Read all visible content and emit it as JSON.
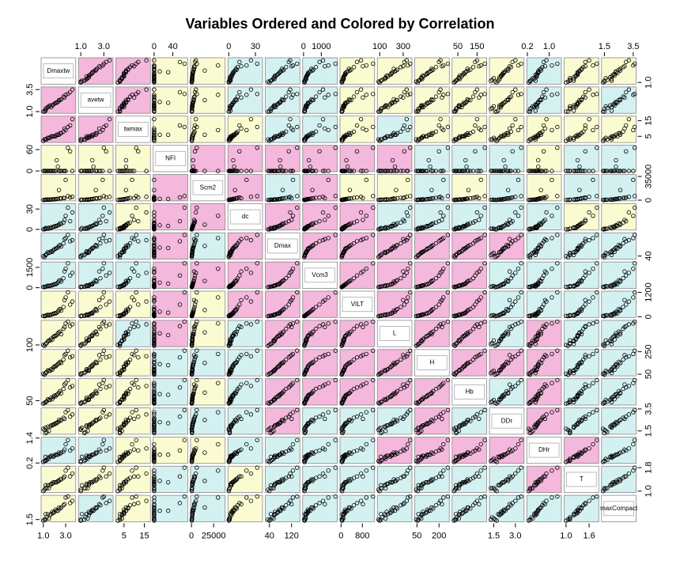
{
  "chart_data": {
    "type": "scatter-matrix",
    "title": "Variables Ordered and Colored by Correlation",
    "point_color": "#000000",
    "variables": [
      {
        "name": "Dmaxtw",
        "lim": [
          0.8,
          3.9
        ],
        "xticks": [
          {
            "value": 1,
            "label": "1.0"
          },
          {
            "value": 3,
            "label": "3.0"
          }
        ],
        "yticks": [
          {
            "value": 1,
            "label": "1.0"
          }
        ],
        "values": [
          1.2,
          2.1,
          1.5,
          3.4,
          1.8,
          2.6,
          1.1,
          3.0,
          1.4,
          2.3,
          2.8,
          1.3,
          1.9,
          2.5,
          1.0,
          3.6,
          2.2,
          1.6,
          2.9,
          1.7,
          2.4,
          1.2,
          3.2,
          2.0
        ]
      },
      {
        "name": "avetw",
        "lim": [
          0.8,
          3.8
        ],
        "xticks": [
          {
            "value": 1,
            "label": "1.0"
          },
          {
            "value": 3,
            "label": "3.0"
          }
        ],
        "yticks": [
          {
            "value": 1,
            "label": "1.0"
          },
          3.5
        ],
        "values": [
          1.1,
          2.0,
          1.6,
          3.2,
          1.7,
          2.4,
          1.0,
          2.9,
          1.5,
          2.1,
          2.7,
          1.4,
          1.8,
          2.3,
          1.0,
          3.5,
          2.0,
          1.7,
          2.6,
          1.5,
          2.3,
          1.3,
          3.0,
          1.9
        ]
      },
      {
        "name": "twmax",
        "lim": [
          1,
          18
        ],
        "xticks": [
          5,
          15
        ],
        "yticks": [
          5,
          15
        ],
        "values": [
          3,
          5,
          4,
          12,
          5,
          7,
          3,
          9,
          4,
          6,
          8,
          3,
          5,
          7,
          2,
          16,
          6,
          4,
          10,
          5,
          6,
          3,
          11,
          5
        ]
      },
      {
        "name": "NFI",
        "lim": [
          -2,
          72
        ],
        "xticks": [
          0,
          40
        ],
        "yticks": [
          0,
          60
        ],
        "values": [
          0,
          0,
          0,
          55,
          0,
          0,
          0,
          0,
          0,
          12,
          0,
          0,
          0,
          0,
          0,
          0,
          30,
          0,
          0,
          0,
          0,
          0,
          65,
          0
        ]
      },
      {
        "name": "Scm2",
        "lim": [
          -1000,
          38000
        ],
        "xticks": [
          0,
          25000
        ],
        "yticks": [
          0,
          35000
        ],
        "values": [
          800,
          1500,
          600,
          4000,
          1200,
          2500,
          400,
          30000,
          900,
          2000,
          3500,
          700,
          1100,
          2800,
          300,
          5000,
          1800,
          1000,
          3000,
          900,
          15000,
          500,
          6000,
          1400
        ]
      },
      {
        "name": "dc",
        "lim": [
          -1,
          38
        ],
        "xticks": [
          0,
          30
        ],
        "yticks": [
          0,
          30
        ],
        "values": [
          2,
          5,
          1,
          12,
          3,
          8,
          0,
          20,
          2,
          6,
          10,
          1,
          4,
          9,
          0,
          25,
          5,
          3,
          14,
          2,
          7,
          1,
          32,
          4
        ]
      },
      {
        "name": "Dmax",
        "lim": [
          25,
          150
        ],
        "xticks": [
          40,
          120
        ],
        "yticks": [
          40
        ],
        "values": [
          45,
          75,
          55,
          110,
          60,
          85,
          35,
          125,
          58,
          80,
          100,
          50,
          68,
          92,
          40,
          115,
          78,
          57,
          120,
          62,
          88,
          44,
          140,
          72
        ]
      },
      {
        "name": "Vcm3",
        "lim": [
          -50,
          1900
        ],
        "xticks": [
          0,
          1000
        ],
        "yticks": [
          0,
          1500
        ],
        "values": [
          80,
          250,
          120,
          900,
          180,
          450,
          40,
          1400,
          150,
          380,
          700,
          100,
          230,
          550,
          60,
          1100,
          300,
          140,
          1200,
          170,
          500,
          70,
          1800,
          260
        ]
      },
      {
        "name": "VILT",
        "lim": [
          -40,
          1260
        ],
        "xticks": [
          0,
          800
        ],
        "yticks": [
          0,
          1200
        ],
        "values": [
          50,
          160,
          80,
          600,
          120,
          300,
          25,
          950,
          100,
          250,
          480,
          70,
          150,
          380,
          40,
          750,
          200,
          90,
          820,
          110,
          330,
          45,
          1200,
          170
        ]
      },
      {
        "name": "L",
        "lim": [
          80,
          375
        ],
        "xticks": [
          100,
          300
        ],
        "yticks": [
          100
        ],
        "values": [
          110,
          200,
          150,
          310,
          160,
          220,
          90,
          340,
          140,
          230,
          280,
          120,
          190,
          250,
          100,
          330,
          210,
          150,
          300,
          170,
          240,
          110,
          360,
          200
        ]
      },
      {
        "name": "H",
        "lim": [
          35,
          270
        ],
        "xticks": [
          50,
          200
        ],
        "yticks": [
          50,
          250
        ],
        "values": [
          60,
          120,
          80,
          200,
          90,
          150,
          45,
          230,
          85,
          140,
          180,
          70,
          110,
          160,
          55,
          210,
          130,
          80,
          220,
          95,
          150,
          60,
          260,
          120
        ]
      },
      {
        "name": "Hb",
        "lim": [
          20,
          200
        ],
        "xticks": [
          50,
          150
        ],
        "yticks": [
          50
        ],
        "values": [
          40,
          80,
          55,
          140,
          60,
          100,
          35,
          170,
          60,
          95,
          130,
          45,
          75,
          115,
          30,
          150,
          90,
          55,
          160,
          70,
          105,
          40,
          190,
          85
        ]
      },
      {
        "name": "DDr",
        "lim": [
          1.2,
          3.6
        ],
        "xticks": [
          1.5,
          {
            "value": 3,
            "label": "3.0"
          }
        ],
        "yticks": [
          1.5,
          3.5
        ],
        "values": [
          1.8,
          2.2,
          1.5,
          2.8,
          2.0,
          2.5,
          1.6,
          3.2,
          1.9,
          2.3,
          2.7,
          1.4,
          2.1,
          2.4,
          1.7,
          3.0,
          2.2,
          1.9,
          2.6,
          2.0,
          2.5,
          1.3,
          3.4,
          2.1
        ]
      },
      {
        "name": "DHr",
        "lim": [
          0.18,
          1.45
        ],
        "xticks": [
          0.2,
          {
            "value": 1,
            "label": "1.0"
          }
        ],
        "yticks": [
          0.2,
          1.4
        ],
        "values": [
          0.5,
          0.6,
          0.4,
          0.8,
          0.55,
          0.7,
          0.3,
          1.1,
          0.45,
          0.6,
          0.75,
          0.35,
          0.5,
          0.65,
          0.25,
          0.9,
          0.6,
          0.5,
          0.85,
          0.55,
          0.7,
          0.3,
          1.3,
          0.55
        ]
      },
      {
        "name": "T",
        "lim": [
          0.95,
          1.85
        ],
        "xticks": [
          {
            "value": 1,
            "label": "1.0"
          },
          1.6
        ],
        "yticks": [
          {
            "value": 1,
            "label": "1.0"
          },
          1.8
        ],
        "values": [
          1.2,
          1.3,
          1.1,
          1.5,
          1.25,
          1.4,
          1.05,
          1.7,
          1.2,
          1.35,
          1.45,
          1.1,
          1.3,
          1.4,
          1.0,
          1.6,
          1.3,
          1.2,
          1.5,
          1.25,
          1.35,
          1.1,
          1.8,
          1.3
        ]
      },
      {
        "name": "maxCompact",
        "lim": [
          1.3,
          3.7
        ],
        "xticks": [
          1.5,
          3.5
        ],
        "yticks": [
          1.5
        ],
        "values": [
          2.0,
          2.4,
          1.6,
          3.0,
          2.2,
          2.6,
          1.5,
          3.5,
          2.0,
          2.3,
          2.8,
          1.7,
          2.1,
          2.5,
          1.4,
          3.2,
          2.3,
          1.9,
          2.9,
          2.0,
          2.6,
          1.5,
          3.6,
          2.2
        ]
      }
    ],
    "panel_colors": [
      [
        null,
        "#f3b8dc",
        "#f3b8dc",
        "#fbfbd2",
        "#fbfbd2",
        "#d4f1f1",
        "#d4f1f1",
        "#d4f1f1",
        "#fbfbd2",
        "#fbfbd2",
        "#fbfbd2",
        "#fbfbd2",
        "#fbfbd2",
        "#d4f1f1",
        "#fbfbd2",
        "#fbfbd2"
      ],
      [
        "#f3b8dc",
        null,
        "#f3b8dc",
        "#fbfbd2",
        "#fbfbd2",
        "#d4f1f1",
        "#d4f1f1",
        "#d4f1f1",
        "#fbfbd2",
        "#fbfbd2",
        "#fbfbd2",
        "#fbfbd2",
        "#fbfbd2",
        "#d4f1f1",
        "#fbfbd2",
        "#d4f1f1"
      ],
      [
        "#f3b8dc",
        "#f3b8dc",
        null,
        "#fbfbd2",
        "#fbfbd2",
        "#fbfbd2",
        "#d4f1f1",
        "#d4f1f1",
        "#fbfbd2",
        "#d4f1f1",
        "#fbfbd2",
        "#fbfbd2",
        "#fbfbd2",
        "#fbfbd2",
        "#fbfbd2",
        "#fbfbd2"
      ],
      [
        "#fbfbd2",
        "#fbfbd2",
        "#fbfbd2",
        null,
        "#f3b8dc",
        "#f3b8dc",
        "#f3b8dc",
        "#f3b8dc",
        "#f3b8dc",
        "#f3b8dc",
        "#d4f1f1",
        "#d4f1f1",
        "#d4f1f1",
        "#fbfbd2",
        "#d4f1f1",
        "#d4f1f1"
      ],
      [
        "#fbfbd2",
        "#fbfbd2",
        "#fbfbd2",
        "#f3b8dc",
        null,
        "#f3b8dc",
        "#d4f1f1",
        "#f3b8dc",
        "#fbfbd2",
        "#fbfbd2",
        "#d4f1f1",
        "#fbfbd2",
        "#d4f1f1",
        "#fbfbd2",
        "#d4f1f1",
        "#d4f1f1"
      ],
      [
        "#d4f1f1",
        "#d4f1f1",
        "#fbfbd2",
        "#f3b8dc",
        "#f3b8dc",
        null,
        "#f3b8dc",
        "#f3b8dc",
        "#f3b8dc",
        "#d4f1f1",
        "#d4f1f1",
        "#d4f1f1",
        "#d4f1f1",
        "#d4f1f1",
        "#fbfbd2",
        "#fbfbd2"
      ],
      [
        "#d4f1f1",
        "#d4f1f1",
        "#d4f1f1",
        "#f3b8dc",
        "#d4f1f1",
        "#f3b8dc",
        null,
        "#f3b8dc",
        "#f3b8dc",
        "#f3b8dc",
        "#f3b8dc",
        "#f3b8dc",
        "#f3b8dc",
        "#d4f1f1",
        "#d4f1f1",
        "#d4f1f1"
      ],
      [
        "#d4f1f1",
        "#d4f1f1",
        "#d4f1f1",
        "#f3b8dc",
        "#f3b8dc",
        "#f3b8dc",
        "#f3b8dc",
        null,
        "#f3b8dc",
        "#f3b8dc",
        "#f3b8dc",
        "#f3b8dc",
        "#d4f1f1",
        "#d4f1f1",
        "#d4f1f1",
        "#d4f1f1"
      ],
      [
        "#fbfbd2",
        "#fbfbd2",
        "#fbfbd2",
        "#f3b8dc",
        "#fbfbd2",
        "#f3b8dc",
        "#f3b8dc",
        "#f3b8dc",
        null,
        "#f3b8dc",
        "#f3b8dc",
        "#f3b8dc",
        "#d4f1f1",
        "#d4f1f1",
        "#d4f1f1",
        "#d4f1f1"
      ],
      [
        "#fbfbd2",
        "#fbfbd2",
        "#d4f1f1",
        "#f3b8dc",
        "#fbfbd2",
        "#d4f1f1",
        "#f3b8dc",
        "#f3b8dc",
        "#f3b8dc",
        null,
        "#f3b8dc",
        "#f3b8dc",
        "#d4f1f1",
        "#f3b8dc",
        "#d4f1f1",
        "#d4f1f1"
      ],
      [
        "#fbfbd2",
        "#fbfbd2",
        "#fbfbd2",
        "#d4f1f1",
        "#d4f1f1",
        "#d4f1f1",
        "#f3b8dc",
        "#f3b8dc",
        "#f3b8dc",
        "#f3b8dc",
        null,
        "#f3b8dc",
        "#f3b8dc",
        "#f3b8dc",
        "#d4f1f1",
        "#d4f1f1"
      ],
      [
        "#fbfbd2",
        "#fbfbd2",
        "#fbfbd2",
        "#d4f1f1",
        "#fbfbd2",
        "#d4f1f1",
        "#f3b8dc",
        "#f3b8dc",
        "#f3b8dc",
        "#f3b8dc",
        "#f3b8dc",
        null,
        "#d4f1f1",
        "#f3b8dc",
        "#d4f1f1",
        "#d4f1f1"
      ],
      [
        "#fbfbd2",
        "#fbfbd2",
        "#fbfbd2",
        "#d4f1f1",
        "#d4f1f1",
        "#d4f1f1",
        "#f3b8dc",
        "#d4f1f1",
        "#d4f1f1",
        "#d4f1f1",
        "#f3b8dc",
        "#d4f1f1",
        null,
        "#f3b8dc",
        "#d4f1f1",
        "#d4f1f1"
      ],
      [
        "#d4f1f1",
        "#d4f1f1",
        "#fbfbd2",
        "#fbfbd2",
        "#fbfbd2",
        "#d4f1f1",
        "#d4f1f1",
        "#d4f1f1",
        "#d4f1f1",
        "#f3b8dc",
        "#f3b8dc",
        "#f3b8dc",
        "#f3b8dc",
        null,
        "#f3b8dc",
        "#d4f1f1"
      ],
      [
        "#fbfbd2",
        "#fbfbd2",
        "#fbfbd2",
        "#d4f1f1",
        "#d4f1f1",
        "#fbfbd2",
        "#d4f1f1",
        "#d4f1f1",
        "#d4f1f1",
        "#d4f1f1",
        "#d4f1f1",
        "#d4f1f1",
        "#d4f1f1",
        "#f3b8dc",
        null,
        "#d4f1f1"
      ],
      [
        "#fbfbd2",
        "#d4f1f1",
        "#fbfbd2",
        "#d4f1f1",
        "#d4f1f1",
        "#fbfbd2",
        "#d4f1f1",
        "#d4f1f1",
        "#d4f1f1",
        "#d4f1f1",
        "#d4f1f1",
        "#d4f1f1",
        "#d4f1f1",
        "#d4f1f1",
        "#d4f1f1",
        null
      ]
    ]
  }
}
